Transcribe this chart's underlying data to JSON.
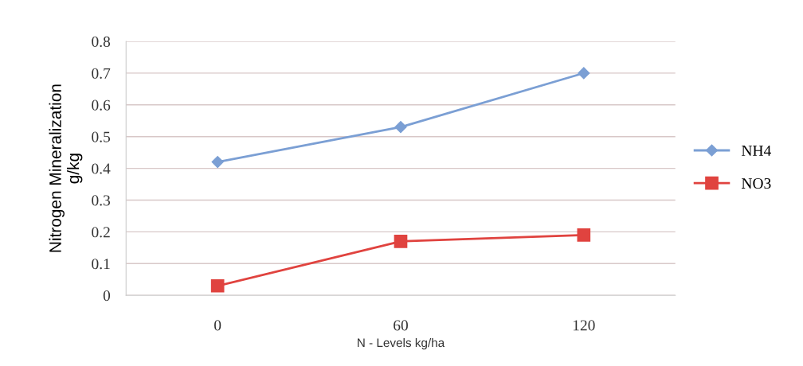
{
  "chart_data": {
    "type": "line",
    "xlabel": "N - Levels kg/ha",
    "ylabel": "Nitrogen Mineralization\ng/kg",
    "categories": [
      "0",
      "60",
      "120"
    ],
    "series": [
      {
        "name": "NH4",
        "color": "#7b9fd4",
        "values": [
          0.42,
          0.53,
          0.7
        ],
        "marker": "diamond"
      },
      {
        "name": "NO3",
        "color": "#e0433f",
        "values": [
          0.03,
          0.17,
          0.19
        ],
        "marker": "square"
      }
    ],
    "ylim": [
      0,
      0.8
    ],
    "yticks": [
      0,
      0.1,
      0.2,
      0.3,
      0.4,
      0.5,
      0.6,
      0.7,
      0.8
    ],
    "grid": "y",
    "legend": "right",
    "line_style": "solid"
  }
}
